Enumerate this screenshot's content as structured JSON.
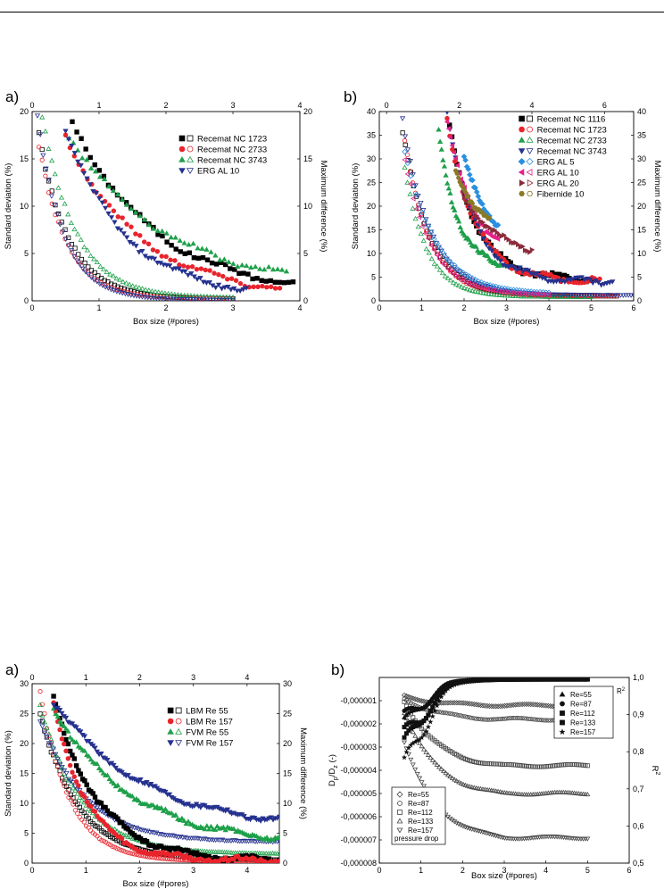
{
  "chart_data": [
    {
      "id": "top_a",
      "panel_label": "a)",
      "type": "scatter",
      "xlabel": "Box size (#pores)",
      "ylabel": "Standard deviation (%)",
      "y2label": "Maximum difference (%)",
      "xlim": [
        0,
        4
      ],
      "ylim": [
        0,
        20
      ],
      "xticks": [
        "0",
        "1",
        "2",
        "3",
        "4"
      ],
      "yticks": [
        "0",
        "5",
        "10",
        "15",
        "20"
      ],
      "top_xlim": [
        0,
        4
      ],
      "top_xticks": [
        "0",
        "1",
        "2",
        "3",
        "4"
      ],
      "y2lim": [
        0,
        20
      ],
      "y2ticks": [
        "0",
        "5",
        "10",
        "15",
        "20"
      ],
      "legend_position": "top-right",
      "series": [
        {
          "name": "Recemat NC 1723",
          "color": "#000000",
          "marker": "square",
          "x0": 0.6,
          "y0": 19,
          "yinf": 0.5,
          "k": 0.8,
          "x1": 3.9,
          "n": 50
        },
        {
          "name": "Recemat NC 2733",
          "color": "#e8242c",
          "marker": "circle",
          "x0": 0.5,
          "y0": 17.5,
          "yinf": 0.4,
          "k": 0.9,
          "x1": 3.7,
          "n": 50
        },
        {
          "name": "Recemat NC 3743",
          "color": "#1ea04a",
          "marker": "triangle",
          "x0": 0.55,
          "y0": 17.5,
          "yinf": 1.2,
          "k": 0.7,
          "x1": 3.8,
          "n": 50
        },
        {
          "name": "ERG AL 10",
          "color": "#26328f",
          "marker": "tri-down",
          "x0": 0.5,
          "y0": 18,
          "yinf": 0.3,
          "k": 1.1,
          "x1": 3.2,
          "n": 60
        }
      ],
      "open_series": [
        {
          "color": "#000000",
          "marker": "square",
          "x0": 0.1,
          "y0": 17.5,
          "yinf": 0.2,
          "k": 2.2,
          "x1": 3.0,
          "n": 60
        },
        {
          "color": "#e8242c",
          "marker": "circle",
          "x0": 0.1,
          "y0": 16.5,
          "yinf": 0.2,
          "k": 2.4,
          "x1": 3.0,
          "n": 60
        },
        {
          "color": "#1ea04a",
          "marker": "triangle",
          "x0": 0.15,
          "y0": 19.5,
          "yinf": 0.3,
          "k": 2.0,
          "x1": 3.0,
          "n": 60
        },
        {
          "color": "#26328f",
          "marker": "tri-down",
          "x0": 0.08,
          "y0": 19.5,
          "yinf": 0.1,
          "k": 2.6,
          "x1": 3.0,
          "n": 70
        }
      ]
    },
    {
      "id": "top_b",
      "panel_label": "b)",
      "type": "scatter",
      "xlabel": "Box size (#pores)",
      "ylabel": "Standard deviation (%)",
      "y2label": "Maximum difference (%)",
      "xlim": [
        0,
        6
      ],
      "ylim": [
        0,
        40
      ],
      "xticks": [
        "0",
        "1",
        "2",
        "3",
        "4",
        "5",
        "6"
      ],
      "yticks": [
        "0",
        "5",
        "10",
        "15",
        "20",
        "25",
        "30",
        "35",
        "40"
      ],
      "top_xlim": [
        -0.2,
        6.8
      ],
      "top_xticks": [
        "0",
        "2",
        "4",
        "6"
      ],
      "y2lim": [
        0,
        40
      ],
      "y2ticks": [
        "0",
        "5",
        "10",
        "15",
        "20",
        "25",
        "30",
        "35",
        "40"
      ],
      "legend_position": "top-right",
      "series": [
        {
          "name": "Recemat NC 1116",
          "color": "#000000",
          "marker": "square",
          "x0": 1.6,
          "y0": 40,
          "yinf": 4.5,
          "k": 1.6,
          "x1": 5.0,
          "n": 60
        },
        {
          "name": "Recemat NC 1723",
          "color": "#e8242c",
          "marker": "circle",
          "x0": 1.6,
          "y0": 38,
          "yinf": 4.0,
          "k": 1.5,
          "x1": 5.2,
          "n": 60
        },
        {
          "name": "Recemat NC 2733",
          "color": "#1ea04a",
          "marker": "triangle",
          "x0": 1.4,
          "y0": 36,
          "yinf": 6.5,
          "k": 2.2,
          "x1": 2.9,
          "n": 45
        },
        {
          "name": "Recemat NC 3743",
          "color": "#26328f",
          "marker": "tri-down",
          "x0": 1.6,
          "y0": 40,
          "yinf": 4.0,
          "k": 1.6,
          "x1": 5.5,
          "n": 60
        },
        {
          "name": "ERG AL 5",
          "color": "#2a8fe0",
          "marker": "diamond",
          "x0": 2.0,
          "y0": 30,
          "yinf": 10,
          "k": 1.5,
          "x1": 2.8,
          "n": 25
        },
        {
          "name": "ERG AL 10",
          "color": "#e6208a",
          "marker": "tri-left",
          "x0": 1.6,
          "y0": 38,
          "yinf": 10,
          "k": 1.8,
          "x1": 2.8,
          "n": 30
        },
        {
          "name": "ERG AL 20",
          "color": "#8a2a3a",
          "marker": "tri-right",
          "x0": 2.0,
          "y0": 22,
          "yinf": 9,
          "k": 1.2,
          "x1": 3.6,
          "n": 30
        },
        {
          "name": "Fibernide 10",
          "color": "#8a7a28",
          "marker": "hexagon",
          "x0": 1.8,
          "y0": 28,
          "yinf": 12,
          "k": 1.5,
          "x1": 2.6,
          "n": 25
        }
      ],
      "open_series": [
        {
          "color": "#000000",
          "marker": "square",
          "x0": 0.55,
          "y0": 36,
          "yinf": 1.0,
          "k": 1.6,
          "x1": 5.6,
          "n": 80
        },
        {
          "color": "#e8242c",
          "marker": "circle",
          "x0": 0.6,
          "y0": 34,
          "yinf": 1.0,
          "k": 1.7,
          "x1": 5.6,
          "n": 80
        },
        {
          "color": "#1ea04a",
          "marker": "triangle",
          "x0": 0.6,
          "y0": 28,
          "yinf": 0.8,
          "k": 1.9,
          "x1": 5.0,
          "n": 70
        },
        {
          "color": "#26328f",
          "marker": "tri-down",
          "x0": 0.55,
          "y0": 38,
          "yinf": 1.2,
          "k": 1.5,
          "x1": 6.0,
          "n": 90
        },
        {
          "color": "#2a8fe0",
          "marker": "diamond",
          "x0": 0.6,
          "y0": 32,
          "yinf": 1.5,
          "k": 1.4,
          "x1": 4.0,
          "n": 50
        },
        {
          "color": "#e6208a",
          "marker": "tri-left",
          "x0": 0.6,
          "y0": 30,
          "yinf": 1.2,
          "k": 1.6,
          "x1": 4.0,
          "n": 50
        }
      ]
    },
    {
      "id": "bottom_a",
      "panel_label": "a)",
      "type": "scatter",
      "xlabel": "Box size (#pores)",
      "ylabel": "Standard deviation (%)",
      "y2label": "Maximum difference (%)",
      "xlim": [
        0,
        4.6
      ],
      "ylim": [
        0,
        30
      ],
      "xticks": [
        "0",
        "1",
        "2",
        "3",
        "4"
      ],
      "yticks": [
        "0",
        "5",
        "10",
        "15",
        "20",
        "25",
        "30"
      ],
      "top_xlim": [
        0,
        4.6
      ],
      "top_xticks": [
        "0",
        "1",
        "2",
        "3",
        "4"
      ],
      "y2lim": [
        0,
        30
      ],
      "y2ticks": [
        "0",
        "5",
        "10",
        "15",
        "20",
        "25",
        "30"
      ],
      "legend_position": "top-right",
      "series": [
        {
          "name": "LBM Re 55",
          "color": "#000000",
          "marker": "square",
          "x0": 0.4,
          "y0": 27.5,
          "yinf": 0.3,
          "k": 1.2,
          "x1": 4.6,
          "n": 110
        },
        {
          "name": "LBM Re 157",
          "color": "#e8242c",
          "marker": "circle",
          "x0": 0.4,
          "y0": 27,
          "yinf": 0.4,
          "k": 1.6,
          "x1": 4.6,
          "n": 110
        },
        {
          "name": "FVM Re 55",
          "color": "#1ea04a",
          "marker": "triangle",
          "x0": 0.4,
          "y0": 26,
          "yinf": 3.0,
          "k": 0.7,
          "x1": 4.6,
          "n": 110
        },
        {
          "name": "FVM Re 157",
          "color": "#26328f",
          "marker": "tri-down",
          "x0": 0.4,
          "y0": 27,
          "yinf": 5.5,
          "k": 0.6,
          "x1": 4.6,
          "n": 110
        }
      ],
      "open_series": [
        {
          "color": "#000000",
          "marker": "square",
          "x0": 0.15,
          "y0": 25,
          "yinf": 0.5,
          "k": 1.4,
          "x1": 4.6,
          "n": 110
        },
        {
          "color": "#e8242c",
          "marker": "circle",
          "x0": 0.15,
          "y0": 28.5,
          "yinf": 0.3,
          "k": 1.8,
          "x1": 4.6,
          "n": 110
        },
        {
          "color": "#1ea04a",
          "marker": "triangle",
          "x0": 0.15,
          "y0": 26,
          "yinf": 1.5,
          "k": 1.3,
          "x1": 4.6,
          "n": 110
        },
        {
          "color": "#26328f",
          "marker": "tri-down",
          "x0": 0.15,
          "y0": 24,
          "yinf": 3.5,
          "k": 1.2,
          "x1": 4.6,
          "n": 110
        }
      ]
    },
    {
      "id": "bottom_b",
      "panel_label": "b)",
      "type": "scatter",
      "xlabel": "Box size (#pores)",
      "ylabel": "Dp/Dz (-)",
      "ylabel_main": "D",
      "ylabel_sub1": "p",
      "ylabel_mid": "/D",
      "ylabel_sub2": "z",
      "ylabel_tail": " (-)",
      "y2label": "R",
      "y2label_sup": "2",
      "xlim": [
        0,
        6
      ],
      "ylim": [
        -8e-06,
        0
      ],
      "y2lim": [
        0.5,
        1.0
      ],
      "xticks": [
        "0",
        "1",
        "2",
        "3",
        "4",
        "5",
        "6"
      ],
      "yticks": [
        "-0,000008",
        "-0,000007",
        "-0,000006",
        "-0,000005",
        "-0,000004",
        "-0,000003",
        "-0,000002",
        "-0,000001"
      ],
      "y2ticks": [
        "0,5",
        "0,6",
        "0,7",
        "0,8",
        "0,9",
        "1,0"
      ],
      "legend_r2": {
        "title": "R",
        "title_sup": "2",
        "entries": [
          "Re=55",
          "Re=87",
          "Re=112",
          "Re=133",
          "Re=157"
        ]
      },
      "legend_dp": {
        "entries": [
          "Re=55",
          "Re=87",
          "Re=112",
          "Re=133",
          "Re=157"
        ],
        "footer": "pressure drop"
      },
      "pressure_series": [
        {
          "name": "Re=55",
          "marker": "diamond",
          "x0": 0.6,
          "y0": -8e-07,
          "yend": -1.2e-06,
          "x1": 5.0
        },
        {
          "name": "Re=87",
          "marker": "circle",
          "x0": 0.6,
          "y0": -9e-07,
          "yend": -1.8e-06,
          "x1": 5.0
        },
        {
          "name": "Re=112",
          "marker": "square",
          "x0": 0.6,
          "y0": -1e-06,
          "yend": -3.8e-06,
          "x1": 5.0
        },
        {
          "name": "Re=133",
          "marker": "triangle",
          "x0": 0.6,
          "y0": -1.5e-06,
          "yend": -5e-06,
          "x1": 5.0
        },
        {
          "name": "Re=157",
          "marker": "tri-down",
          "x0": 0.6,
          "y0": -2.8e-06,
          "yend": -6.9e-06,
          "x1": 5.0
        }
      ],
      "r2_series": [
        {
          "name": "Re=55",
          "marker": "tri-up-filled",
          "x0": 0.6,
          "y0": 0.9,
          "yend": 0.995,
          "x1": 5.0
        },
        {
          "name": "Re=87",
          "marker": "circle-half",
          "x0": 0.6,
          "y0": 0.92,
          "yend": 0.995,
          "x1": 5.0
        },
        {
          "name": "Re=112",
          "marker": "square-half",
          "x0": 0.6,
          "y0": 0.85,
          "yend": 0.995,
          "x1": 5.0
        },
        {
          "name": "Re=133",
          "marker": "square-half",
          "x0": 0.6,
          "y0": 0.88,
          "yend": 0.995,
          "x1": 5.0
        },
        {
          "name": "Re=157",
          "marker": "star",
          "x0": 0.6,
          "y0": 0.8,
          "yend": 0.995,
          "x1": 5.0
        }
      ]
    }
  ]
}
